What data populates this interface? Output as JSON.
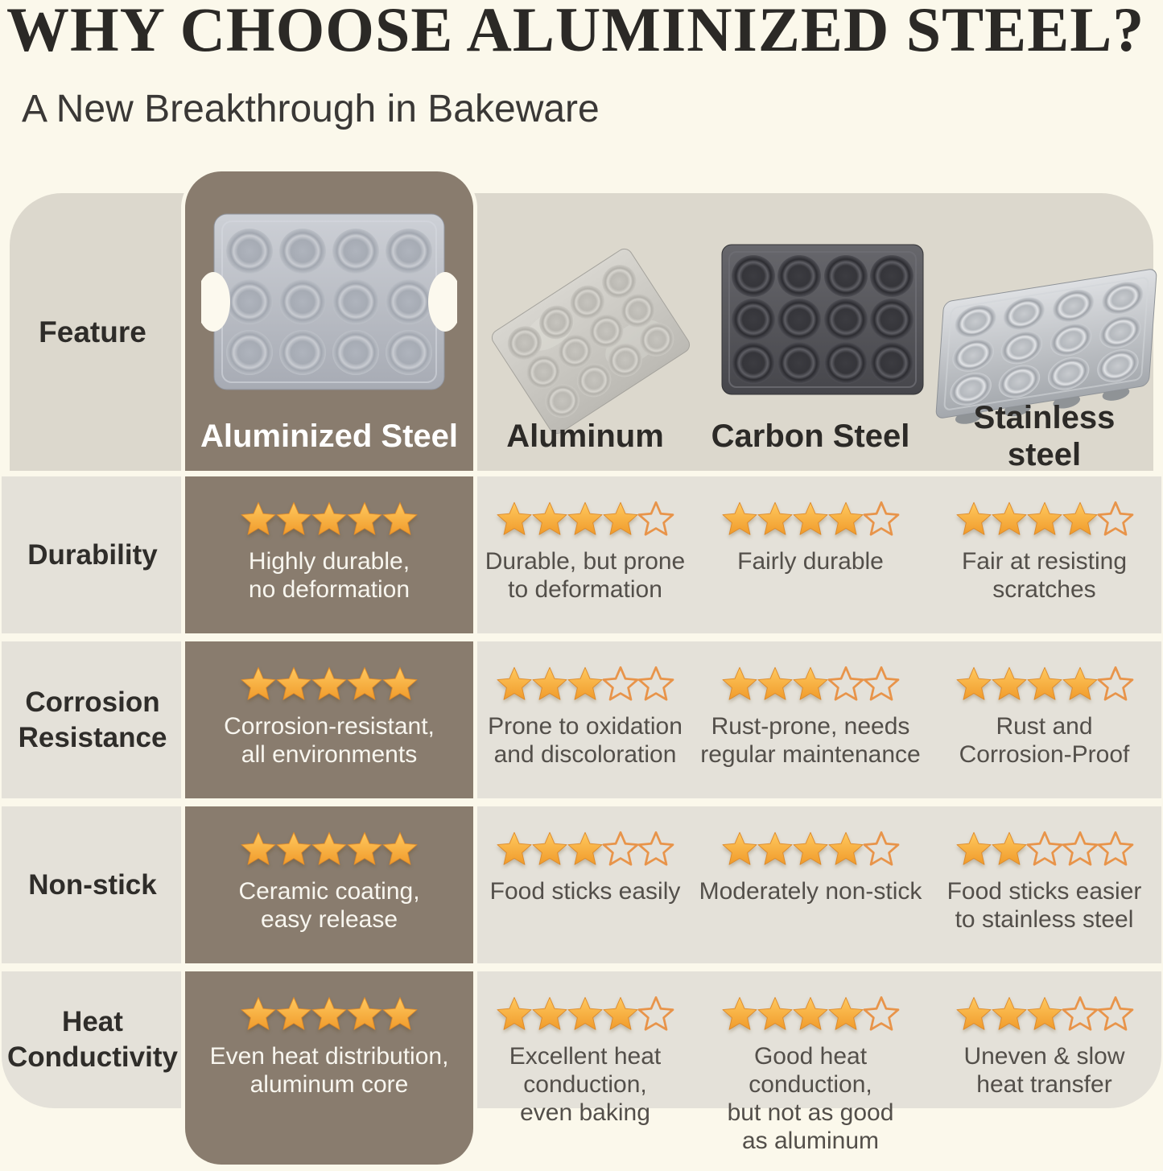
{
  "page": {
    "title": "WHY CHOOSE ALUMINIZED STEEL?",
    "subtitle": "A New Breakthrough in Bakeware"
  },
  "header": {
    "feature_label": "Feature",
    "columns": [
      {
        "label": "Aluminized Steel",
        "image": "aluminized-steel-muffin-pan",
        "highlighted": true
      },
      {
        "label": "Aluminum",
        "image": "aluminum-muffin-pan",
        "highlighted": false
      },
      {
        "label": "Carbon Steel",
        "image": "carbon-steel-muffin-pan",
        "highlighted": false
      },
      {
        "label": "Stainless\nsteel",
        "image": "stainless-steel-muffin-pan",
        "highlighted": false
      }
    ]
  },
  "rows": [
    {
      "label": "Durability",
      "cells": [
        {
          "stars": 5,
          "text": "Highly durable,\nno deformation"
        },
        {
          "stars": 4,
          "text": "Durable, but prone\nto deformation"
        },
        {
          "stars": 4,
          "text": "Fairly durable"
        },
        {
          "stars": 4,
          "text": "Fair at resisting\nscratches"
        }
      ]
    },
    {
      "label": "Corrosion\nResistance",
      "cells": [
        {
          "stars": 5,
          "text": "Corrosion-resistant,\nall environments"
        },
        {
          "stars": 3,
          "text": "Prone to oxidation\nand discoloration"
        },
        {
          "stars": 3,
          "text": "Rust-prone, needs\nregular maintenance"
        },
        {
          "stars": 4,
          "text": "Rust and\nCorrosion-Proof"
        }
      ]
    },
    {
      "label": "Non-stick",
      "cells": [
        {
          "stars": 5,
          "text": "Ceramic coating,\neasy release"
        },
        {
          "stars": 3,
          "text": "Food sticks easily"
        },
        {
          "stars": 4,
          "text": "Moderately non-stick"
        },
        {
          "stars": 2,
          "text": "Food sticks easier\nto stainless steel"
        }
      ]
    },
    {
      "label": "Heat\nConductivity",
      "cells": [
        {
          "stars": 5,
          "text": "Even heat distribution,\naluminum core"
        },
        {
          "stars": 4,
          "text": "Excellent heat\nconduction,\neven baking"
        },
        {
          "stars": 4,
          "text": "Good heat conduction,\nbut not as good\nas aluminum"
        },
        {
          "stars": 3,
          "text": "Uneven & slow\nheat transfer"
        }
      ]
    }
  ],
  "colors": {
    "background": "#FBF8EB",
    "header_band": "#DCD8CD",
    "row_band": "#E4E1D9",
    "highlight_column": "#897C6E",
    "star_filled": "#F5A73B",
    "star_outline": "#E8944A",
    "title_text": "#2B2926",
    "body_text": "#534F4A",
    "highlight_text": "#FFFFFF"
  },
  "chart_data": {
    "type": "table",
    "title": "WHY CHOOSE ALUMINIZED STEEL?",
    "subtitle": "A New Breakthrough in Bakeware",
    "row_header": "Feature",
    "columns": [
      "Aluminized Steel",
      "Aluminum",
      "Carbon Steel",
      "Stainless steel"
    ],
    "rating_max": 5,
    "rows": [
      {
        "feature": "Durability",
        "ratings": [
          5,
          4,
          4,
          4
        ],
        "notes": [
          "Highly durable, no deformation",
          "Durable, but prone to deformation",
          "Fairly durable",
          "Fair at resisting scratches"
        ]
      },
      {
        "feature": "Corrosion Resistance",
        "ratings": [
          5,
          3,
          3,
          4
        ],
        "notes": [
          "Corrosion-resistant, all environments",
          "Prone to oxidation and discoloration",
          "Rust-prone, needs regular maintenance",
          "Rust and Corrosion-Proof"
        ]
      },
      {
        "feature": "Non-stick",
        "ratings": [
          5,
          3,
          4,
          2
        ],
        "notes": [
          "Ceramic coating, easy release",
          "Food sticks easily",
          "Moderately non-stick",
          "Food sticks easier to stainless steel"
        ]
      },
      {
        "feature": "Heat Conductivity",
        "ratings": [
          5,
          4,
          4,
          3
        ],
        "notes": [
          "Even heat distribution, aluminum core",
          "Excellent heat conduction, even baking",
          "Good heat conduction, but not as good as aluminum",
          "Uneven & slow heat transfer"
        ]
      }
    ]
  }
}
